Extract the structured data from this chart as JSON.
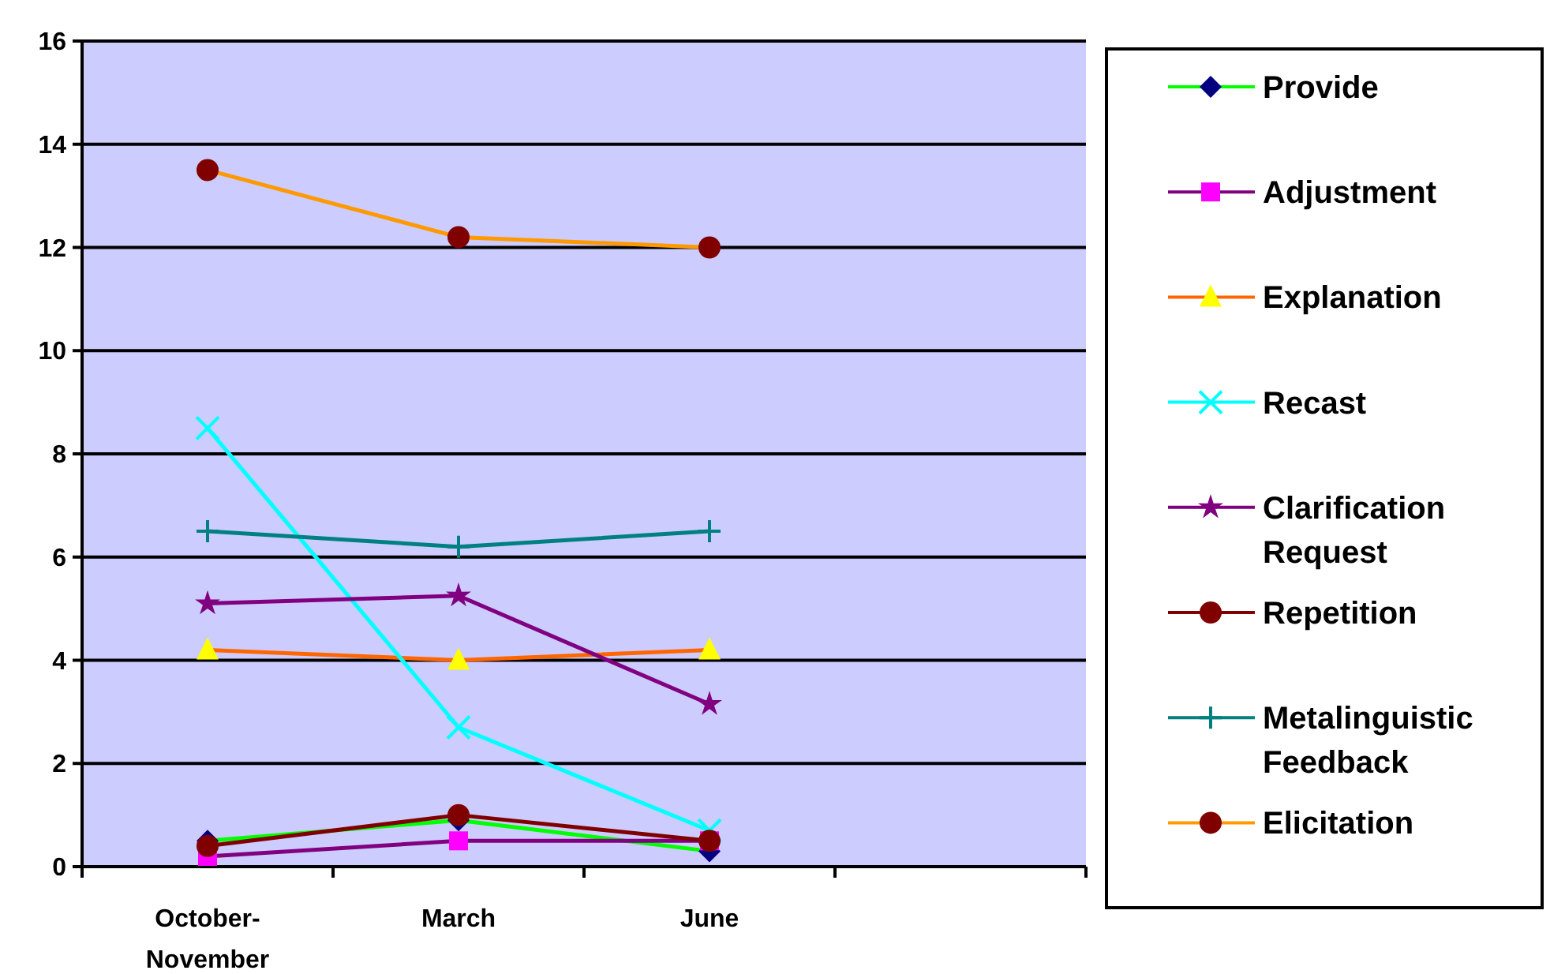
{
  "chart_data": {
    "type": "line",
    "categories": [
      "October-November",
      "March",
      "June",
      null
    ],
    "ylim": [
      0,
      16
    ],
    "yticks": [
      0,
      2,
      4,
      6,
      8,
      10,
      12,
      14,
      16
    ],
    "grid": "y",
    "legend": "right",
    "series": [
      {
        "name": "Provide",
        "color": "#00ff00",
        "colors": [
          "#000080",
          "#000080",
          "#000080",
          null
        ],
        "marker": "diamond",
        "values": [
          0.5,
          0.9,
          0.3,
          null
        ]
      },
      {
        "name": "Adjustment",
        "color": "#800080",
        "colors": [
          "#ff00ff",
          "#ff00ff",
          "#ff00ff",
          null
        ],
        "marker": "square",
        "values": [
          0.2,
          0.5,
          0.5,
          null
        ]
      },
      {
        "name": "Explanation",
        "color": "#ff6600",
        "colors": [
          "#ffff00",
          "#ffff00",
          "#ffff00",
          null
        ],
        "marker": "triangle",
        "values": [
          4.2,
          4.0,
          4.2,
          null
        ]
      },
      {
        "name": "Recast",
        "color": "#00ffff",
        "colors": [
          "#00ffff",
          "#00ffff",
          "#00ffff",
          null
        ],
        "marker": "cross",
        "values": [
          8.5,
          2.7,
          0.7,
          null
        ]
      },
      {
        "name": "Clarification Request",
        "color": "#800080",
        "colors": [
          "#800080",
          "#800080",
          "#800080",
          null
        ],
        "marker": "star",
        "values": [
          5.1,
          5.25,
          3.15,
          null
        ]
      },
      {
        "name": "Repetition",
        "color": "#800000",
        "colors": [
          "#800000",
          "#800000",
          "#800000",
          null
        ],
        "marker": "circle",
        "values": [
          0.4,
          1.0,
          0.5,
          null
        ]
      },
      {
        "name": "Metalinguistic Feedback",
        "color": "#008080",
        "colors": [
          "#008080",
          "#008080",
          "#008080",
          null
        ],
        "marker": "plus",
        "values": [
          6.5,
          6.2,
          6.5,
          null
        ]
      },
      {
        "name": "Elicitation",
        "color": "#ff9900",
        "colors": [
          "#800000",
          "#800000",
          "#800000",
          null
        ],
        "marker": "circle",
        "values": [
          13.5,
          12.2,
          12.0,
          null
        ]
      }
    ]
  }
}
